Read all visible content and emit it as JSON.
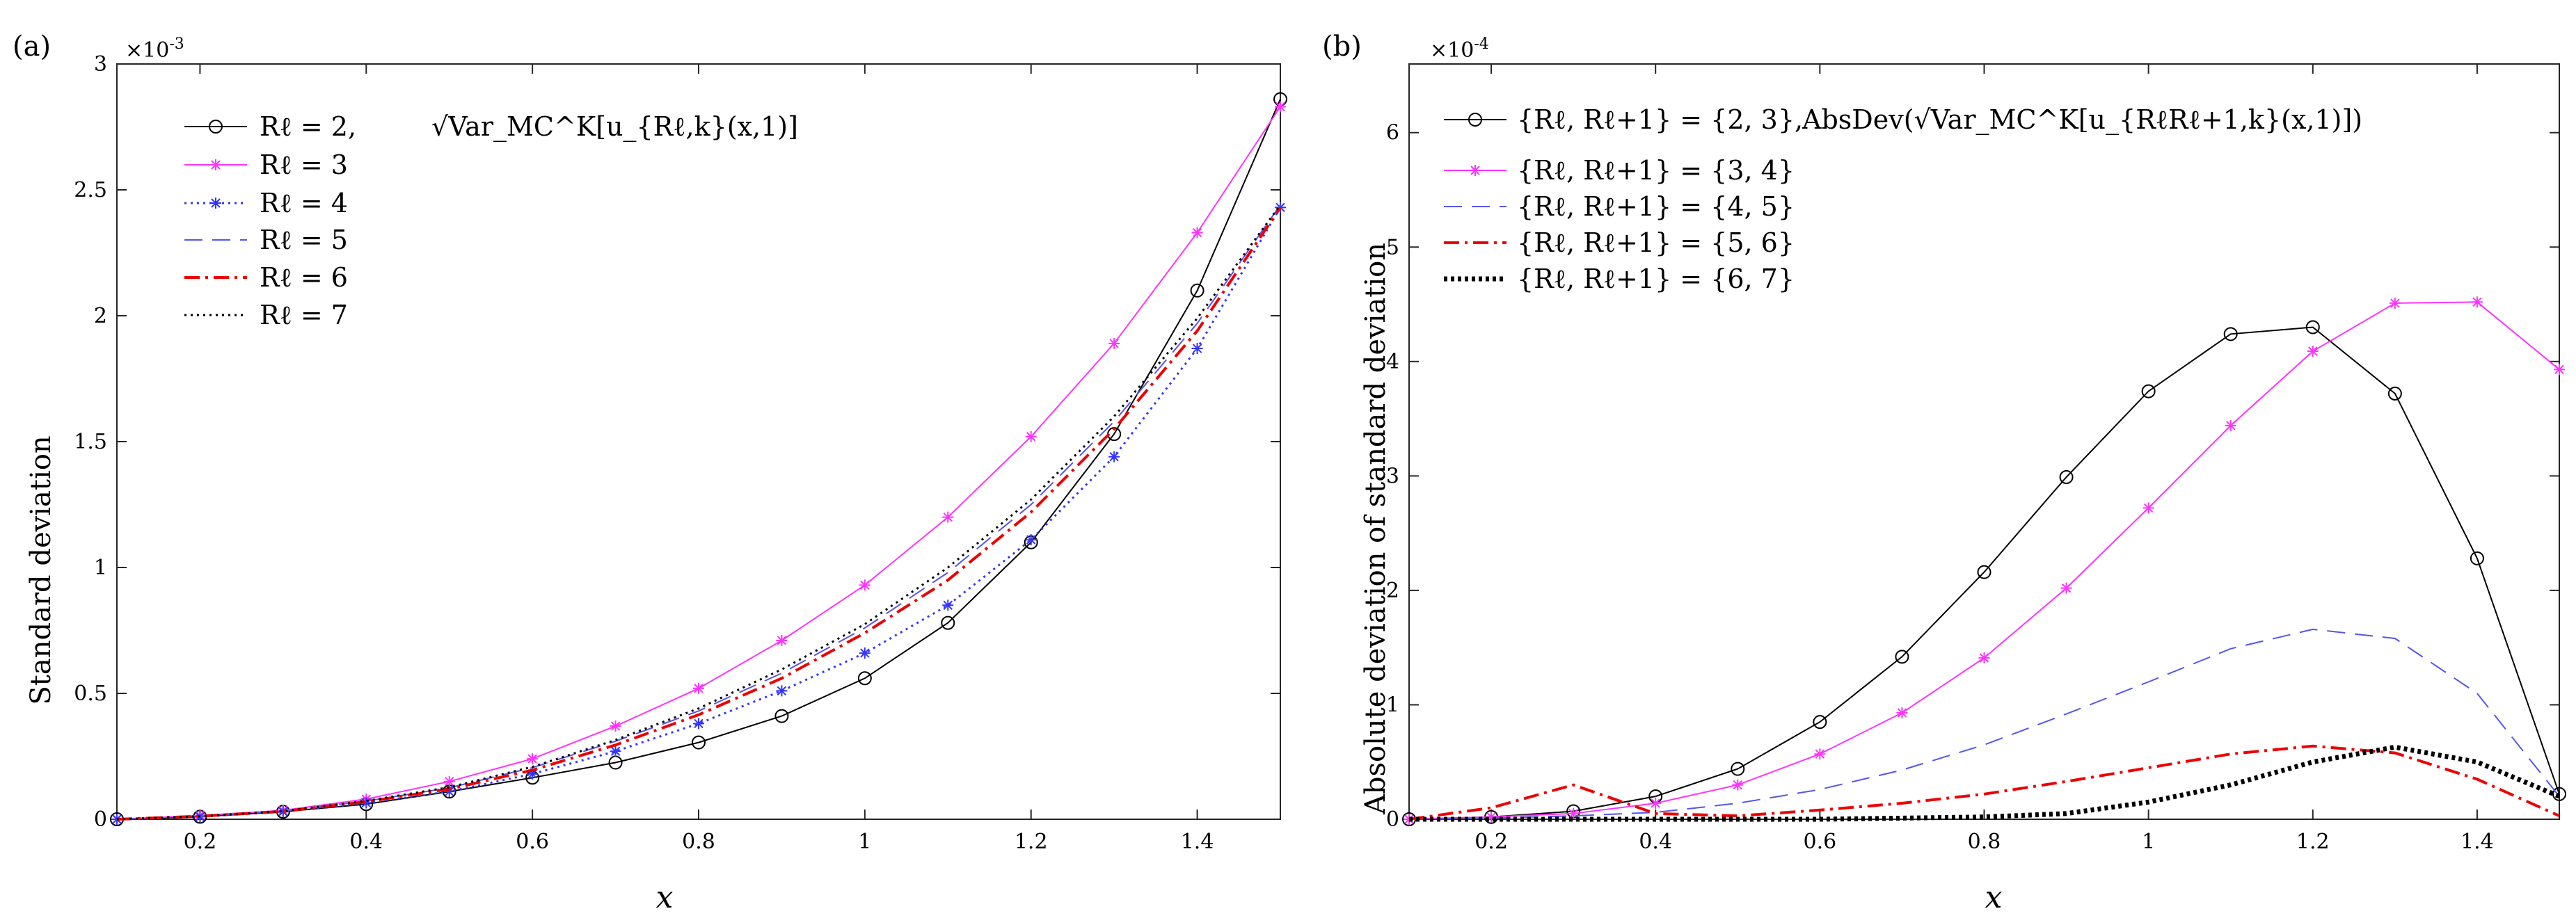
{
  "chart_data": [
    {
      "type": "line",
      "panel_label": "(a)",
      "xlabel": "x",
      "ylabel": "Standard deviation",
      "y_exponent": "×10",
      "y_exponent_power": "-3",
      "xlim": [
        0.1,
        1.5
      ],
      "ylim": [
        0,
        3
      ],
      "xticks": [
        "0.2",
        "0.4",
        "0.6",
        "0.8",
        "1",
        "1.2",
        "1.4"
      ],
      "xtick_values": [
        0.2,
        0.4,
        0.6,
        0.8,
        1.0,
        1.2,
        1.4
      ],
      "yticks": [
        "0",
        "0.5",
        "1",
        "1.5",
        "2",
        "2.5",
        "3"
      ],
      "ytick_values": [
        0,
        0.5,
        1,
        1.5,
        2,
        2.5,
        3
      ],
      "legend_position": "top-left",
      "legend_annotation": "√Var_MC^K[u_{Rℓ,k}(x,1)]",
      "x": [
        0.1,
        0.2,
        0.3,
        0.4,
        0.5,
        0.6,
        0.7,
        0.8,
        0.9,
        1.0,
        1.1,
        1.2,
        1.3,
        1.4,
        1.5
      ],
      "series": [
        {
          "name": "Rℓ = 2,",
          "color": "#000000",
          "dash": "solid",
          "marker": "circle",
          "values": [
            0.0,
            0.01,
            0.03,
            0.06,
            0.11,
            0.165,
            0.225,
            0.305,
            0.41,
            0.56,
            0.78,
            1.1,
            1.53,
            2.1,
            2.86
          ]
        },
        {
          "name": "Rℓ = 3",
          "color": "#ff33ff",
          "dash": "solid",
          "marker": "star",
          "values": [
            0.0,
            0.015,
            0.035,
            0.08,
            0.15,
            0.24,
            0.37,
            0.52,
            0.71,
            0.93,
            1.2,
            1.52,
            1.89,
            2.33,
            2.83
          ]
        },
        {
          "name": "Rℓ = 4",
          "color": "#3333ff",
          "dash": "dotted",
          "marker": "star",
          "values": [
            0.0,
            0.01,
            0.03,
            0.065,
            0.11,
            0.18,
            0.27,
            0.38,
            0.51,
            0.66,
            0.85,
            1.11,
            1.44,
            1.87,
            2.43
          ]
        },
        {
          "name": "Rℓ = 5",
          "color": "#5555ee",
          "dash": "longdash",
          "marker": "none",
          "values": [
            0.0,
            0.012,
            0.032,
            0.072,
            0.125,
            0.205,
            0.31,
            0.43,
            0.58,
            0.76,
            0.98,
            1.25,
            1.58,
            1.97,
            2.44
          ]
        },
        {
          "name": "Rℓ = 6",
          "color": "#ee0000",
          "dash": "dashdot",
          "marker": "none",
          "values": [
            0.0,
            0.012,
            0.031,
            0.07,
            0.12,
            0.195,
            0.295,
            0.415,
            0.56,
            0.74,
            0.95,
            1.22,
            1.55,
            1.94,
            2.43
          ]
        },
        {
          "name": "Rℓ = 7",
          "color": "#000000",
          "dash": "dotted",
          "marker": "none",
          "values": [
            0.0,
            0.012,
            0.032,
            0.073,
            0.127,
            0.208,
            0.315,
            0.44,
            0.595,
            0.775,
            1.0,
            1.27,
            1.6,
            1.99,
            2.44
          ]
        }
      ]
    },
    {
      "type": "line",
      "panel_label": "(b)",
      "xlabel": "x",
      "ylabel": "Absolute deviation of standard deviation",
      "y_exponent": "×10",
      "y_exponent_power": "-4",
      "xlim": [
        0.1,
        1.5
      ],
      "ylim": [
        0,
        6.6
      ],
      "xticks": [
        "0.2",
        "0.4",
        "0.6",
        "0.8",
        "1",
        "1.2",
        "1.4"
      ],
      "xtick_values": [
        0.2,
        0.4,
        0.6,
        0.8,
        1.0,
        1.2,
        1.4
      ],
      "yticks": [
        "0",
        "1",
        "2",
        "3",
        "4",
        "5",
        "6"
      ],
      "ytick_values": [
        0,
        1,
        2,
        3,
        4,
        5,
        6
      ],
      "legend_position": "top-left",
      "legend_annotation": "AbsDev(√Var_MC^K[u_{RℓRℓ+1,k}(x,1)])",
      "x": [
        0.1,
        0.2,
        0.3,
        0.4,
        0.5,
        0.6,
        0.7,
        0.8,
        0.9,
        1.0,
        1.1,
        1.2,
        1.3,
        1.4,
        1.5
      ],
      "series": [
        {
          "name": "{Rℓ, Rℓ+1} = {2, 3},",
          "color": "#000000",
          "dash": "solid",
          "marker": "circle",
          "values": [
            0.0,
            0.02,
            0.07,
            0.2,
            0.44,
            0.85,
            1.42,
            2.16,
            2.99,
            3.74,
            4.24,
            4.3,
            3.72,
            2.28,
            0.22
          ]
        },
        {
          "name": "{Rℓ, Rℓ+1} = {3, 4}",
          "color": "#ff33ff",
          "dash": "solid",
          "marker": "star",
          "values": [
            0.0,
            0.02,
            0.05,
            0.14,
            0.3,
            0.57,
            0.93,
            1.41,
            2.02,
            2.72,
            3.44,
            4.09,
            4.51,
            4.52,
            3.93
          ]
        },
        {
          "name": "{Rℓ, Rℓ+1} = {4, 5}",
          "color": "#5555ee",
          "dash": "longdash",
          "marker": "none",
          "values": [
            0.0,
            0.01,
            0.03,
            0.06,
            0.14,
            0.26,
            0.43,
            0.65,
            0.92,
            1.2,
            1.49,
            1.66,
            1.58,
            1.1,
            0.2
          ]
        },
        {
          "name": "{Rℓ, Rℓ+1} = {5, 6}",
          "color": "#ee0000",
          "dash": "dashdot",
          "marker": "none",
          "values": [
            0.0,
            0.1,
            0.3,
            0.05,
            0.03,
            0.08,
            0.14,
            0.22,
            0.33,
            0.45,
            0.57,
            0.64,
            0.58,
            0.35,
            0.03
          ]
        },
        {
          "name": "{Rℓ, Rℓ+1} = {6, 7}",
          "color": "#000000",
          "dash": "thickdotted",
          "marker": "none",
          "values": [
            0.0,
            0.0,
            0.0,
            0.0,
            0.0,
            0.0,
            0.01,
            0.02,
            0.05,
            0.15,
            0.3,
            0.5,
            0.63,
            0.5,
            0.2
          ]
        }
      ]
    }
  ]
}
